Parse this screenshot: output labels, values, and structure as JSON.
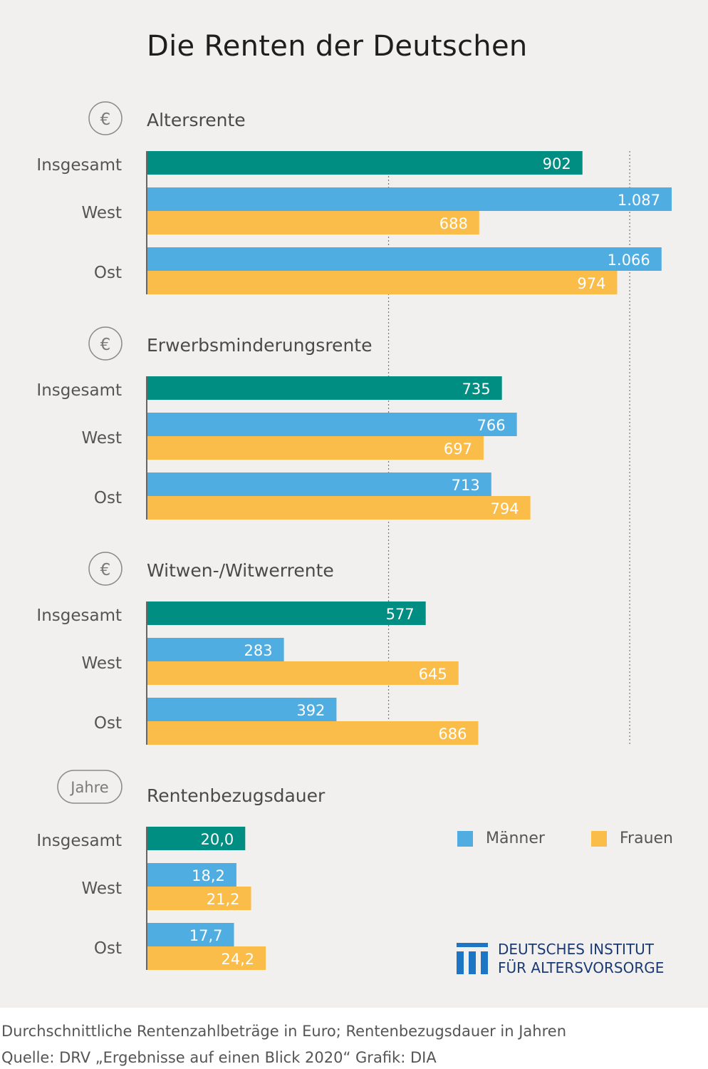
{
  "title": "Die Renten der Deutschen",
  "colors": {
    "insgesamt": "#008e82",
    "maenner": "#4fade2",
    "frauen": "#fbbd4a",
    "label": "#555555",
    "value_text": "#ffffff"
  },
  "legend": {
    "maenner": "Männer",
    "frauen": "Frauen"
  },
  "logo": {
    "line1": "DEUTSCHES INSTITUT",
    "line2": "FÜR ALTERSVORSORGE",
    "icon": "dia-columns-logo"
  },
  "caption": {
    "line1": "Durchschnittliche Rentenzahlbeträge in Euro; Rentenbezugsdauer in Jahren",
    "line2": "Quelle: DRV „Ergebnisse auf einen Blick 2020“  Grafik: DIA"
  },
  "chart_data": [
    {
      "type": "bar",
      "title": "Altersrente",
      "badge": "€",
      "categories": [
        "Insgesamt",
        "West",
        "Ost"
      ],
      "series": [
        {
          "name": "Insgesamt",
          "values": [
            902,
            null,
            null
          ],
          "labels": [
            "902",
            "",
            ""
          ]
        },
        {
          "name": "Männer",
          "values": [
            null,
            1087,
            1066
          ],
          "labels": [
            "",
            "1.087",
            "1.066"
          ]
        },
        {
          "name": "Frauen",
          "values": [
            null,
            688,
            974
          ],
          "labels": [
            "",
            "688",
            "974"
          ]
        }
      ],
      "xlim": [
        0,
        1100
      ]
    },
    {
      "type": "bar",
      "title": "Erwerbsminderungsrente",
      "badge": "€",
      "categories": [
        "Insgesamt",
        "West",
        "Ost"
      ],
      "series": [
        {
          "name": "Insgesamt",
          "values": [
            735,
            null,
            null
          ],
          "labels": [
            "735",
            "",
            ""
          ]
        },
        {
          "name": "Männer",
          "values": [
            null,
            766,
            713
          ],
          "labels": [
            "",
            "766",
            "713"
          ]
        },
        {
          "name": "Frauen",
          "values": [
            null,
            697,
            794
          ],
          "labels": [
            "",
            "697",
            "794"
          ]
        }
      ],
      "xlim": [
        0,
        1100
      ]
    },
    {
      "type": "bar",
      "title": "Witwen-/Witwerrente",
      "badge": "€",
      "categories": [
        "Insgesamt",
        "West",
        "Ost"
      ],
      "series": [
        {
          "name": "Insgesamt",
          "values": [
            577,
            null,
            null
          ],
          "labels": [
            "577",
            "",
            ""
          ]
        },
        {
          "name": "Männer",
          "values": [
            null,
            283,
            392
          ],
          "labels": [
            "",
            "283",
            "392"
          ]
        },
        {
          "name": "Frauen",
          "values": [
            null,
            645,
            686
          ],
          "labels": [
            "",
            "645",
            "686"
          ]
        }
      ],
      "xlim": [
        0,
        1100
      ]
    },
    {
      "type": "bar",
      "title": "Rentenbezugsdauer",
      "badge": "Jahre",
      "categories": [
        "Insgesamt",
        "West",
        "Ost"
      ],
      "series": [
        {
          "name": "Insgesamt",
          "values": [
            20.0,
            null,
            null
          ],
          "labels": [
            "20,0",
            "",
            ""
          ]
        },
        {
          "name": "Männer",
          "values": [
            null,
            18.2,
            17.7
          ],
          "labels": [
            "",
            "18,2",
            "17,7"
          ]
        },
        {
          "name": "Frauen",
          "values": [
            null,
            21.2,
            24.2
          ],
          "labels": [
            "",
            "21,2",
            "24,2"
          ]
        }
      ],
      "xlim": [
        0,
        108.5
      ]
    }
  ]
}
